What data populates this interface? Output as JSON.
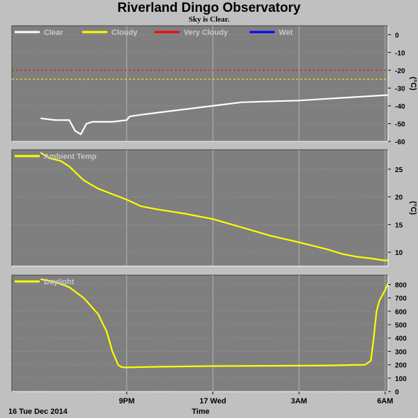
{
  "header": {
    "title": "Riverland Dingo Observatory",
    "subtitle": "Sky is Clear."
  },
  "x_axis": {
    "date_label": "16 Tue Dec 2014",
    "label": "Time"
  },
  "colors": {
    "plot_bg": "#7f7f7f",
    "grid": "#b4b4b4",
    "clear": "#ffffff",
    "cloudy": "#ffff00",
    "very_cloudy": "#ff0000",
    "wet": "#0000ff"
  },
  "chart_data": [
    {
      "type": "line",
      "legend": [
        {
          "name": "Clear",
          "color": "#ffffff"
        },
        {
          "name": "Cloudy",
          "color": "#ffff00"
        },
        {
          "name": "Very Cloudy",
          "color": "#ff0000"
        },
        {
          "name": "Wet",
          "color": "#0000ff"
        }
      ],
      "ylim": [
        -60,
        5
      ],
      "yticks": [
        0,
        -10,
        -20,
        -30,
        -40,
        -50,
        -60
      ],
      "yunit": "(°C)",
      "thresholds": [
        {
          "value": -20,
          "color": "#ff0000"
        },
        {
          "value": -25,
          "color": "#ffff00"
        }
      ],
      "xlim": [
        17,
        30.1
      ],
      "xticks": [
        {
          "hour": 21,
          "label": "9PM"
        },
        {
          "hour": 24,
          "label": "17 Wed"
        },
        {
          "hour": 27,
          "label": "3AM"
        },
        {
          "hour": 30,
          "label": "6AM"
        }
      ],
      "series": [
        {
          "name": "Clear",
          "color": "#ffffff",
          "x": [
            18,
            18.5,
            19,
            19.2,
            19.4,
            19.6,
            19.8,
            20,
            20.5,
            21,
            21.1,
            21.5,
            22,
            23,
            24,
            25,
            26,
            27,
            28,
            29,
            30,
            30.1
          ],
          "y": [
            -47,
            -48,
            -48,
            -54,
            -56,
            -50,
            -49,
            -49,
            -49,
            -48,
            -46,
            -45,
            -44,
            -42,
            -40,
            -38,
            -37.5,
            -37,
            -36,
            -35,
            -34,
            -34
          ]
        }
      ]
    },
    {
      "type": "line",
      "legend": [
        {
          "name": "Ambient Temp",
          "color": "#ffff00"
        }
      ],
      "ylim": [
        7.5,
        28.5
      ],
      "yticks": [
        25,
        20,
        15,
        10
      ],
      "yunit": "(°C)",
      "xlim": [
        17,
        30.1
      ],
      "xticks": [
        {
          "hour": 21,
          "label": "9PM"
        },
        {
          "hour": 24,
          "label": "17 Wed"
        },
        {
          "hour": 27,
          "label": "3AM"
        },
        {
          "hour": 30,
          "label": "6AM"
        }
      ],
      "series": [
        {
          "name": "Ambient Temp",
          "color": "#ffff00",
          "x": [
            18,
            18.3,
            18.7,
            19,
            19.3,
            19.5,
            20,
            20.5,
            21,
            21.5,
            22,
            23,
            24,
            25,
            26,
            27,
            28,
            28.5,
            29,
            29.5,
            30,
            30.1
          ],
          "y": [
            28,
            27,
            26.5,
            25.5,
            24,
            23,
            21.5,
            20.5,
            19.5,
            18.3,
            17.8,
            17,
            16,
            14.5,
            13,
            11.8,
            10.5,
            9.7,
            9.2,
            8.9,
            8.5,
            8.6
          ]
        }
      ]
    },
    {
      "type": "line",
      "legend": [
        {
          "name": "Daylight",
          "color": "#ffff00"
        }
      ],
      "ylim": [
        0,
        870
      ],
      "yticks": [
        800,
        700,
        600,
        500,
        400,
        300,
        200,
        100,
        0
      ],
      "xlim": [
        17,
        30.1
      ],
      "xticks": [
        {
          "hour": 21,
          "label": "9PM"
        },
        {
          "hour": 24,
          "label": "17 Wed"
        },
        {
          "hour": 27,
          "label": "3AM"
        },
        {
          "hour": 30,
          "label": "6AM"
        }
      ],
      "series": [
        {
          "name": "Daylight",
          "color": "#ffff00",
          "x": [
            18,
            18.5,
            19,
            19.5,
            20,
            20.3,
            20.5,
            20.7,
            20.8,
            20.9,
            21,
            22,
            24,
            26,
            28,
            29.3,
            29.5,
            29.6,
            29.7,
            29.8,
            30,
            30.1
          ],
          "y": [
            840,
            820,
            780,
            700,
            580,
            450,
            300,
            200,
            185,
            180,
            180,
            185,
            190,
            192,
            195,
            200,
            230,
            400,
            600,
            680,
            760,
            810
          ]
        }
      ]
    }
  ]
}
